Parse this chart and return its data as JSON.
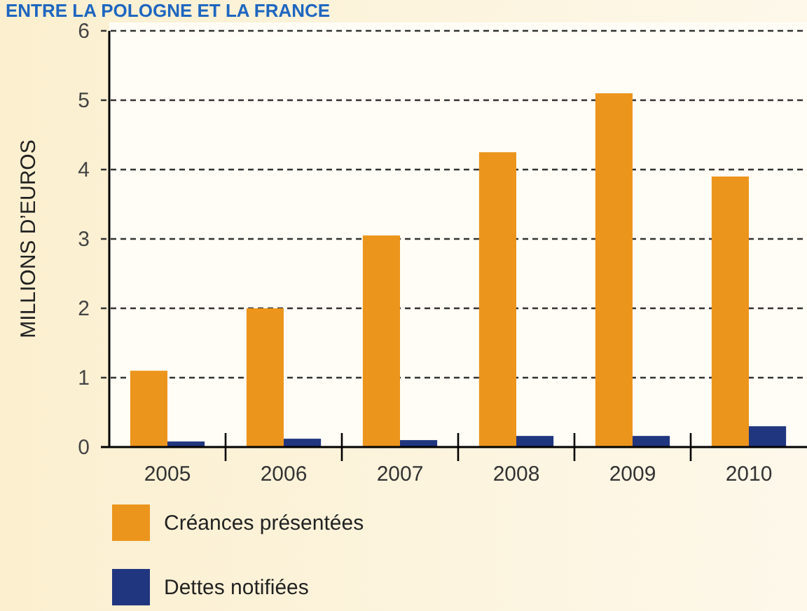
{
  "chart_data": {
    "type": "bar",
    "title": "ENTRE LA POLOGNE ET LA FRANCE",
    "ylabel": "MILLIONS D’EUROS",
    "categories": [
      "2005",
      "2006",
      "2007",
      "2008",
      "2009",
      "2010"
    ],
    "series": [
      {
        "name": "Créances présentées",
        "color": "#ec951d",
        "values": [
          1.1,
          2.0,
          3.05,
          4.25,
          5.1,
          3.9
        ]
      },
      {
        "name": "Dettes notifiées",
        "color": "#20367f",
        "values": [
          0.08,
          0.12,
          0.1,
          0.16,
          0.16,
          0.3
        ]
      }
    ],
    "ylim": [
      0,
      6
    ],
    "yticks": [
      0,
      1,
      2,
      3,
      4,
      5,
      6
    ],
    "grid": "y",
    "legend": "bottom left"
  }
}
